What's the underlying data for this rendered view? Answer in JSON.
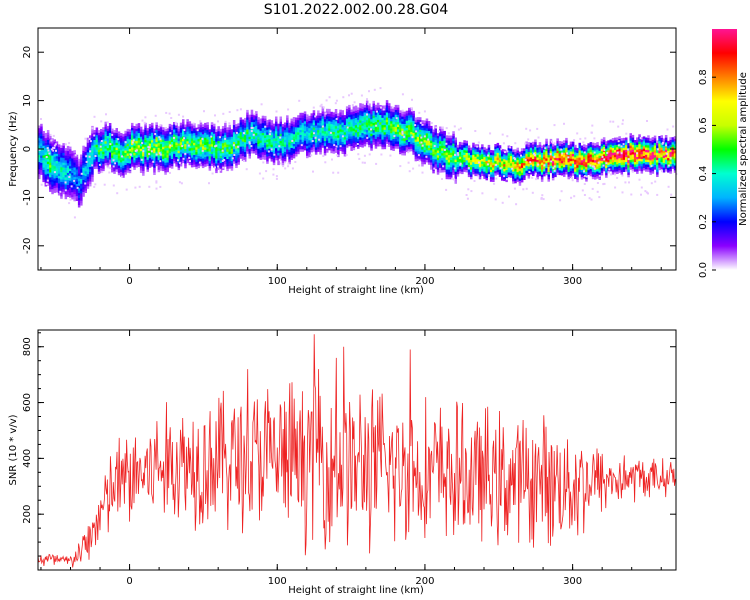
{
  "title": "S101.2022.002.00.28.G04",
  "chart_data": [
    {
      "type": "heatmap",
      "title": "S101.2022.002.00.28.G04",
      "xlabel": "Height of straight line (km)",
      "ylabel": "Frequency (Hz)",
      "xlim": [
        -62,
        370
      ],
      "ylim": [
        -25,
        25
      ],
      "xticks": [
        0,
        100,
        200,
        300
      ],
      "yticks": [
        -20,
        -10,
        0,
        10,
        20
      ],
      "colorbar": {
        "label": "Normalized spectral amplitude",
        "ticks": [
          "0.0",
          "0.2",
          "0.4",
          "0.6",
          "0.8"
        ],
        "range": [
          0,
          1
        ],
        "colormap": [
          "#ffffff",
          "#8a00ff",
          "#0000ff",
          "#00b4ff",
          "#00ffd0",
          "#00ff00",
          "#c8ff00",
          "#ffff00",
          "#ff8000",
          "#ff0000",
          "#ff1493"
        ]
      },
      "ridge": {
        "x": [
          -60,
          -55,
          -50,
          -45,
          -40,
          -35,
          -30,
          -25,
          -20,
          -15,
          -10,
          -5,
          0,
          10,
          20,
          30,
          40,
          50,
          60,
          70,
          80,
          90,
          100,
          110,
          120,
          130,
          140,
          150,
          160,
          170,
          180,
          190,
          200,
          210,
          220,
          230,
          240,
          250,
          260,
          270,
          280,
          290,
          300,
          310,
          320,
          330,
          340,
          350,
          360,
          370
        ],
        "y": [
          -1,
          -3,
          -4,
          -5,
          -6,
          -7,
          -4,
          -1,
          0,
          1,
          -1,
          -1,
          0,
          0,
          0,
          0.5,
          1,
          0,
          0,
          0.5,
          3,
          2,
          1,
          2,
          3,
          3.5,
          3,
          4,
          4.5,
          5,
          4,
          3,
          1,
          -1,
          -2,
          -2.5,
          -3,
          -3,
          -3.5,
          -3,
          -2.5,
          -2.5,
          -2.5,
          -2.5,
          -2,
          -1.5,
          -1.5,
          -1.5,
          -1.5,
          -1.5
        ],
        "amplitude": [
          0.4,
          0.5,
          0.4,
          0.4,
          0.3,
          0.3,
          0.35,
          0.4,
          0.5,
          0.5,
          0.55,
          0.5,
          0.6,
          0.55,
          0.6,
          0.55,
          0.5,
          0.55,
          0.5,
          0.5,
          0.45,
          0.45,
          0.45,
          0.4,
          0.4,
          0.45,
          0.45,
          0.45,
          0.5,
          0.5,
          0.55,
          0.55,
          0.55,
          0.55,
          0.55,
          0.6,
          0.7,
          0.7,
          0.75,
          0.8,
          0.85,
          0.9,
          0.9,
          0.9,
          0.95,
          1.0,
          1.0,
          0.95,
          0.9,
          0.9
        ]
      }
    },
    {
      "type": "line",
      "xlabel": "Height of straight line (km)",
      "ylabel": "SNR (10 * v/v)",
      "xlim": [
        -62,
        370
      ],
      "ylim": [
        0,
        860
      ],
      "xticks": [
        0,
        100,
        200,
        300
      ],
      "yticks": [
        200,
        400,
        600,
        800
      ],
      "color": "#ee2222",
      "envelope": {
        "x": [
          -62,
          -40,
          -30,
          -20,
          -10,
          0,
          20,
          40,
          60,
          80,
          100,
          120,
          140,
          160,
          180,
          200,
          220,
          240,
          260,
          280,
          300,
          320,
          340,
          360,
          370
        ],
        "mean": [
          40,
          30,
          80,
          200,
          300,
          330,
          370,
          390,
          400,
          400,
          400,
          390,
          380,
          370,
          360,
          350,
          340,
          330,
          320,
          320,
          310,
          320,
          330,
          330,
          340
        ],
        "spread": [
          40,
          30,
          80,
          150,
          200,
          220,
          250,
          280,
          300,
          320,
          330,
          340,
          350,
          350,
          330,
          310,
          300,
          290,
          280,
          270,
          260,
          150,
          100,
          80,
          70
        ]
      },
      "peaks": [
        [
          125,
          845
        ],
        [
          128,
          720
        ],
        [
          145,
          800
        ],
        [
          190,
          790
        ],
        [
          140,
          760
        ],
        [
          80,
          720
        ]
      ]
    }
  ]
}
